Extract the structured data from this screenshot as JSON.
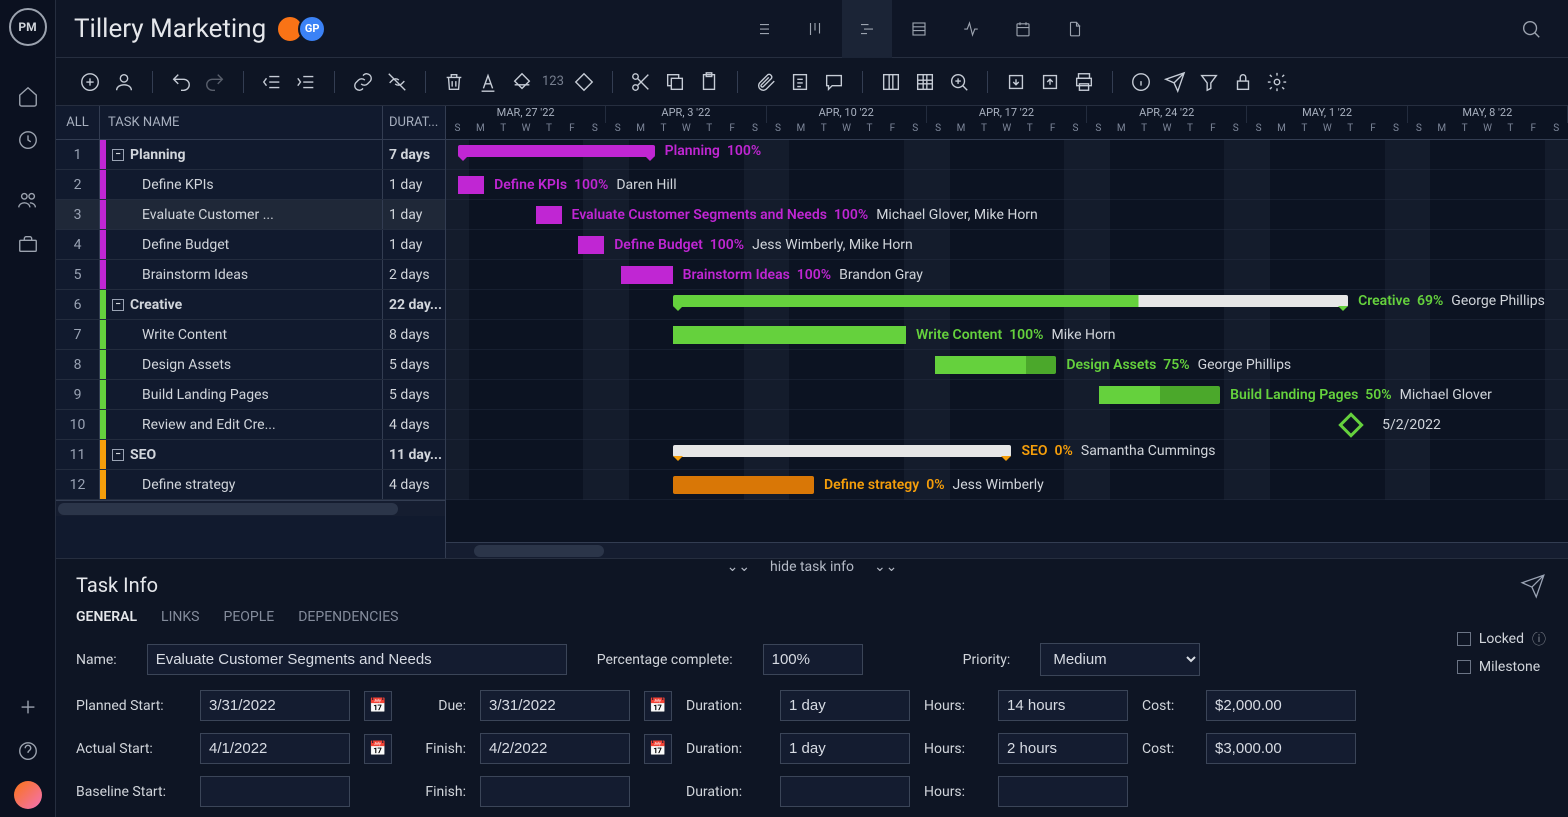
{
  "app": {
    "logo_text": "PM",
    "title": "Tillery Marketing"
  },
  "avatars": [
    {
      "bg": "#f97316",
      "initials": ""
    },
    {
      "bg": "#3b82f6",
      "initials": "GP"
    }
  ],
  "toolbar_number": "123",
  "columns": {
    "all": "ALL",
    "name": "TASK NAME",
    "duration": "DURAT..."
  },
  "colors": {
    "planning": "#c026d3",
    "planning_dark": "#a21caf",
    "creative": "#65d13d",
    "creative_dark": "#4ba82b",
    "seo": "#f59e0b",
    "seo_dark": "#d97706"
  },
  "tasks": [
    {
      "id": 1,
      "name": "Planning",
      "duration": "7 days",
      "parent": true,
      "indent": 0,
      "color": "planning",
      "bar_left": 0.011,
      "bar_width": 0.175,
      "progress": 1.0,
      "label": "Planning",
      "pct": "100%",
      "assignee": ""
    },
    {
      "id": 2,
      "name": "Define KPIs",
      "duration": "1 day",
      "parent": false,
      "indent": 1,
      "color": "planning",
      "bar_left": 0.011,
      "bar_width": 0.023,
      "progress": 1.0,
      "label": "Define KPIs",
      "pct": "100%",
      "assignee": "Daren Hill"
    },
    {
      "id": 3,
      "name": "Evaluate Customer ...",
      "duration": "1 day",
      "parent": false,
      "indent": 1,
      "color": "planning",
      "bar_left": 0.08,
      "bar_width": 0.023,
      "progress": 1.0,
      "label": "Evaluate Customer Segments and Needs",
      "pct": "100%",
      "assignee": "Michael Glover, Mike Horn",
      "selected": true
    },
    {
      "id": 4,
      "name": "Define Budget",
      "duration": "1 day",
      "parent": false,
      "indent": 1,
      "color": "planning",
      "bar_left": 0.118,
      "bar_width": 0.023,
      "progress": 1.0,
      "label": "Define Budget",
      "pct": "100%",
      "assignee": "Jess Wimberly, Mike Horn"
    },
    {
      "id": 5,
      "name": "Brainstorm Ideas",
      "duration": "2 days",
      "parent": false,
      "indent": 1,
      "color": "planning",
      "bar_left": 0.156,
      "bar_width": 0.046,
      "progress": 1.0,
      "label": "Brainstorm Ideas",
      "pct": "100%",
      "assignee": "Brandon Gray"
    },
    {
      "id": 6,
      "name": "Creative",
      "duration": "22 day...",
      "parent": true,
      "indent": 0,
      "color": "creative",
      "bar_left": 0.202,
      "bar_width": 0.602,
      "progress": 0.69,
      "label": "Creative",
      "pct": "69%",
      "assignee": "George Phillips"
    },
    {
      "id": 7,
      "name": "Write Content",
      "duration": "8 days",
      "parent": false,
      "indent": 1,
      "color": "creative",
      "bar_left": 0.202,
      "bar_width": 0.208,
      "progress": 1.0,
      "label": "Write Content",
      "pct": "100%",
      "assignee": "Mike Horn"
    },
    {
      "id": 8,
      "name": "Design Assets",
      "duration": "5 days",
      "parent": false,
      "indent": 1,
      "color": "creative",
      "bar_left": 0.436,
      "bar_width": 0.108,
      "progress": 0.75,
      "label": "Design Assets",
      "pct": "75%",
      "assignee": "George Phillips"
    },
    {
      "id": 9,
      "name": "Build Landing Pages",
      "duration": "5 days",
      "parent": false,
      "indent": 1,
      "color": "creative",
      "bar_left": 0.582,
      "bar_width": 0.108,
      "progress": 0.5,
      "label": "Build Landing Pages",
      "pct": "50%",
      "assignee": "Michael Glover"
    },
    {
      "id": 10,
      "name": "Review and Edit Cre...",
      "duration": "4 days",
      "parent": false,
      "indent": 1,
      "color": "creative",
      "milestone": true,
      "ms_left": 0.799,
      "ms_label": "5/2/2022"
    },
    {
      "id": 11,
      "name": "SEO",
      "duration": "11 day...",
      "parent": true,
      "indent": 0,
      "color": "seo",
      "bar_left": 0.202,
      "bar_width": 0.302,
      "progress": 0.0,
      "label": "SEO",
      "pct": "0%",
      "assignee": "Samantha Cummings"
    },
    {
      "id": 12,
      "name": "Define strategy",
      "duration": "4 days",
      "parent": false,
      "indent": 1,
      "color": "seo",
      "bar_left": 0.202,
      "bar_width": 0.126,
      "progress": 0.0,
      "label": "Define strategy",
      "pct": "0%",
      "assignee": "Jess Wimberly",
      "cutoff": true
    }
  ],
  "timeline": {
    "weeks": [
      "MAR, 27 '22",
      "APR, 3 '22",
      "APR, 10 '22",
      "APR, 17 '22",
      "APR, 24 '22",
      "MAY, 1 '22",
      "MAY, 8 '22"
    ],
    "days": [
      "S",
      "M",
      "T",
      "W",
      "T",
      "F",
      "S"
    ]
  },
  "info": {
    "title": "Task Info",
    "hide": "hide task info",
    "tabs": [
      "GENERAL",
      "LINKS",
      "PEOPLE",
      "DEPENDENCIES"
    ],
    "name_label": "Name:",
    "name_value": "Evaluate Customer Segments and Needs",
    "pct_label": "Percentage complete:",
    "pct_value": "100%",
    "priority_label": "Priority:",
    "priority_value": "Medium",
    "planned_start_label": "Planned Start:",
    "planned_start": "3/31/2022",
    "due_label": "Due:",
    "due": "3/31/2022",
    "duration_label": "Duration:",
    "duration1": "1 day",
    "hours_label": "Hours:",
    "hours1": "14 hours",
    "cost_label": "Cost:",
    "cost1": "$2,000.00",
    "actual_start_label": "Actual Start:",
    "actual_start": "4/1/2022",
    "finish_label": "Finish:",
    "finish": "4/2/2022",
    "duration2": "1 day",
    "hours2": "2 hours",
    "cost2": "$3,000.00",
    "baseline_start_label": "Baseline Start:",
    "locked_label": "Locked",
    "milestone_label": "Milestone"
  }
}
